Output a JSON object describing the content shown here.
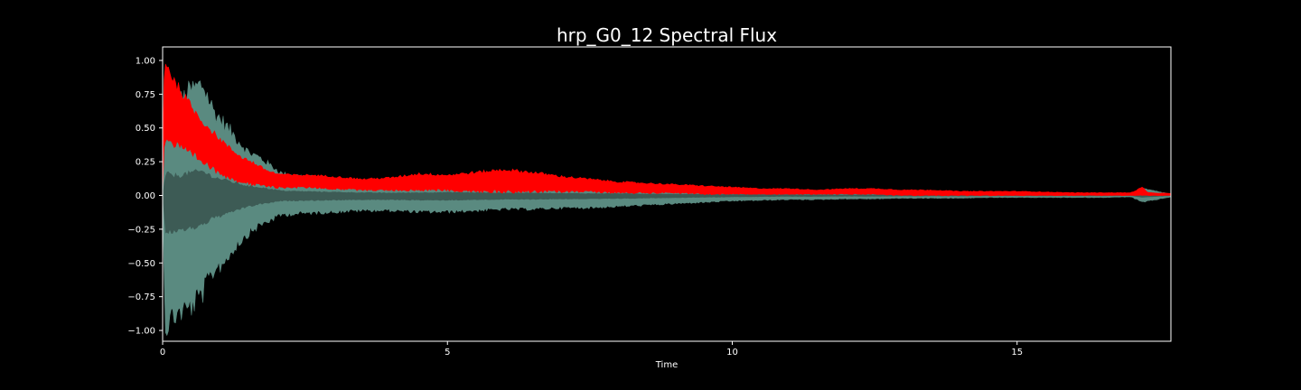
{
  "chart_data": {
    "type": "area",
    "title": "hrp_G0_12 Spectral Flux",
    "xlabel": "Time",
    "ylabel": "",
    "xlim": [
      0,
      17.7
    ],
    "ylim": [
      -1.08,
      1.1
    ],
    "x_ticks": [
      0,
      5,
      10,
      15
    ],
    "x_tick_labels": [
      "0",
      "5",
      "10",
      "15"
    ],
    "y_ticks": [
      1.0,
      0.75,
      0.5,
      0.25,
      0.0,
      -0.25,
      -0.5,
      -0.75,
      -1.0
    ],
    "y_tick_labels": [
      "1.00",
      "0.75",
      "0.50",
      "0.25",
      "0.00",
      "−0.25",
      "−0.50",
      "−0.75",
      "−1.00"
    ],
    "grid": false,
    "series": [
      {
        "kind": "waveform-envelope",
        "color": "#5a8a80",
        "x": [
          0,
          0.05,
          0.15,
          0.3,
          0.5,
          0.7,
          0.9,
          1.1,
          1.3,
          1.5,
          1.7,
          1.9,
          2.1,
          2.5,
          3.0,
          3.5,
          4.0,
          4.5,
          5.0,
          5.5,
          6.0,
          6.5,
          7.0,
          7.5,
          8.0,
          8.5,
          9.0,
          9.5,
          10.0,
          10.5,
          11.0,
          11.5,
          12.0,
          12.5,
          13.0,
          13.5,
          14.0,
          14.5,
          15.0,
          15.5,
          16.0,
          16.5,
          17.0,
          17.2,
          17.7
        ],
        "upper": [
          0.05,
          0.72,
          0.7,
          0.68,
          0.78,
          0.82,
          0.62,
          0.52,
          0.42,
          0.32,
          0.28,
          0.22,
          0.16,
          0.14,
          0.12,
          0.1,
          0.09,
          0.1,
          0.11,
          0.1,
          0.09,
          0.09,
          0.08,
          0.07,
          0.07,
          0.06,
          0.05,
          0.05,
          0.04,
          0.04,
          0.035,
          0.03,
          0.03,
          0.03,
          0.025,
          0.025,
          0.02,
          0.02,
          0.02,
          0.015,
          0.015,
          0.015,
          0.015,
          0.05,
          0.01
        ],
        "lower": [
          -0.05,
          -0.98,
          -0.9,
          -0.86,
          -0.82,
          -0.72,
          -0.55,
          -0.48,
          -0.36,
          -0.28,
          -0.22,
          -0.18,
          -0.14,
          -0.13,
          -0.12,
          -0.11,
          -0.11,
          -0.12,
          -0.12,
          -0.11,
          -0.1,
          -0.1,
          -0.09,
          -0.09,
          -0.08,
          -0.07,
          -0.06,
          -0.05,
          -0.04,
          -0.035,
          -0.03,
          -0.03,
          -0.025,
          -0.025,
          -0.02,
          -0.02,
          -0.02,
          -0.015,
          -0.015,
          -0.015,
          -0.015,
          -0.015,
          -0.01,
          -0.05,
          -0.01
        ]
      },
      {
        "kind": "flux-band",
        "color": "#ff0000",
        "x": [
          0,
          0.03,
          0.08,
          0.2,
          0.4,
          0.6,
          0.8,
          1.0,
          1.2,
          1.4,
          1.6,
          1.8,
          2.0,
          2.3,
          2.6,
          3.0,
          3.5,
          4.0,
          4.5,
          5.0,
          5.5,
          6.0,
          6.5,
          7.0,
          7.5,
          8.0,
          8.5,
          9.0,
          9.5,
          10.0,
          10.5,
          11.0,
          11.5,
          12.0,
          12.5,
          13.0,
          13.5,
          14.0,
          14.5,
          15.0,
          15.5,
          16.0,
          16.5,
          17.0,
          17.2,
          17.3,
          17.7
        ],
        "upper": [
          0.3,
          1.0,
          0.96,
          0.85,
          0.72,
          0.6,
          0.5,
          0.42,
          0.34,
          0.28,
          0.24,
          0.19,
          0.16,
          0.15,
          0.15,
          0.14,
          0.12,
          0.13,
          0.16,
          0.15,
          0.17,
          0.19,
          0.17,
          0.14,
          0.12,
          0.1,
          0.09,
          0.08,
          0.07,
          0.06,
          0.05,
          0.05,
          0.04,
          0.05,
          0.05,
          0.04,
          0.04,
          0.03,
          0.03,
          0.03,
          0.025,
          0.02,
          0.02,
          0.02,
          0.06,
          0.02,
          0.015
        ],
        "lower": [
          0.0,
          0.45,
          0.42,
          0.38,
          0.33,
          0.28,
          0.22,
          0.17,
          0.13,
          0.1,
          0.08,
          0.07,
          0.06,
          0.06,
          0.06,
          0.05,
          0.04,
          0.04,
          0.04,
          0.04,
          0.03,
          0.03,
          0.03,
          0.03,
          0.03,
          0.02,
          0.02,
          0.02,
          0.01,
          0.01,
          0.01,
          0.01,
          0.01,
          0.01,
          0.01,
          0.0,
          0.0,
          0.0,
          0.0,
          0.0,
          0.0,
          0.0,
          0.0,
          0.0,
          0.0,
          0.0,
          0.0
        ]
      }
    ]
  },
  "colors": {
    "background": "#000000",
    "axes": "#ffffff",
    "waveform": "#5a8a80",
    "waveform_core": "#3d5b55",
    "flux": "#ff0000"
  }
}
